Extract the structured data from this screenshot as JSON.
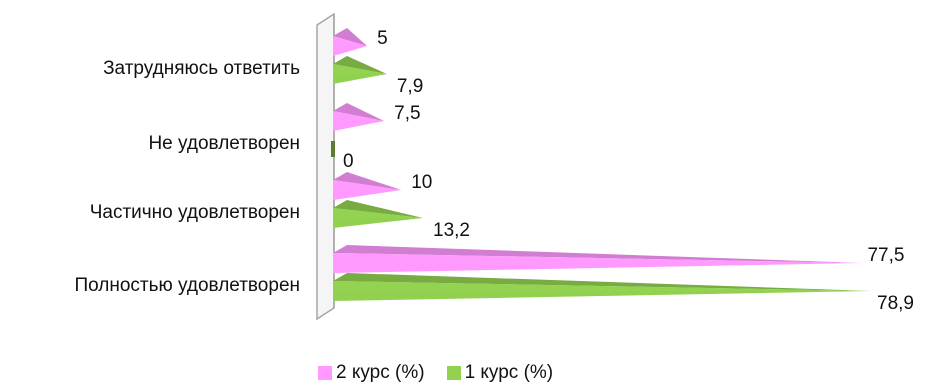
{
  "chart_data": {
    "type": "bar",
    "orientation": "horizontal",
    "style": "3d-pyramid",
    "categories": [
      "Затрудняюсь ответить",
      "Не удовлетворен",
      "Частично удовлетворен",
      "Полностью удовлетворен"
    ],
    "series": [
      {
        "name": "2 курс (%)",
        "color": "#ff99ff",
        "values": [
          5,
          7.5,
          10,
          77.5
        ],
        "labels": [
          "5",
          "7,5",
          "10",
          "77,5"
        ]
      },
      {
        "name": "1 курс (%)",
        "color": "#92d050",
        "values": [
          7.9,
          0,
          13.2,
          78.9
        ],
        "labels": [
          "7,9",
          "0",
          "13,2",
          "78,9"
        ]
      }
    ],
    "xlim": [
      0,
      80
    ],
    "grid": false,
    "legend": "bottom"
  }
}
